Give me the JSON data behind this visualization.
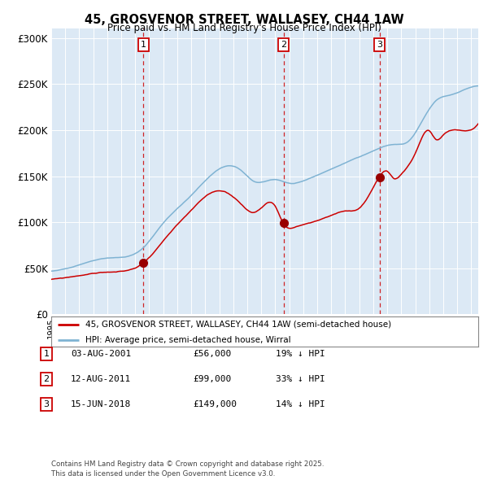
{
  "title": "45, GROSVENOR STREET, WALLASEY, CH44 1AW",
  "subtitle": "Price paid vs. HM Land Registry's House Price Index (HPI)",
  "background_color": "#dce9f5",
  "red_line_color": "#cc0000",
  "blue_line_color": "#7fb3d3",
  "sale_marker_color": "#990000",
  "vline_color": "#cc0000",
  "ylim": [
    0,
    310000
  ],
  "yticks": [
    0,
    50000,
    100000,
    150000,
    200000,
    250000,
    300000
  ],
  "ytick_labels": [
    "£0",
    "£50K",
    "£100K",
    "£150K",
    "£200K",
    "£250K",
    "£300K"
  ],
  "sale1_date": 2001.58,
  "sale1_price": 56000,
  "sale2_date": 2011.6,
  "sale2_price": 99000,
  "sale3_date": 2018.45,
  "sale3_price": 149000,
  "legend_red": "45, GROSVENOR STREET, WALLASEY, CH44 1AW (semi-detached house)",
  "legend_blue": "HPI: Average price, semi-detached house, Wirral",
  "table_rows": [
    {
      "num": "1",
      "date": "03-AUG-2001",
      "price": "£56,000",
      "hpi": "19% ↓ HPI"
    },
    {
      "num": "2",
      "date": "12-AUG-2011",
      "price": "£99,000",
      "hpi": "33% ↓ HPI"
    },
    {
      "num": "3",
      "date": "15-JUN-2018",
      "price": "£149,000",
      "hpi": "14% ↓ HPI"
    }
  ],
  "footnote": "Contains HM Land Registry data © Crown copyright and database right 2025.\nThis data is licensed under the Open Government Licence v3.0.",
  "xstart": 1995.0,
  "xend": 2025.5
}
